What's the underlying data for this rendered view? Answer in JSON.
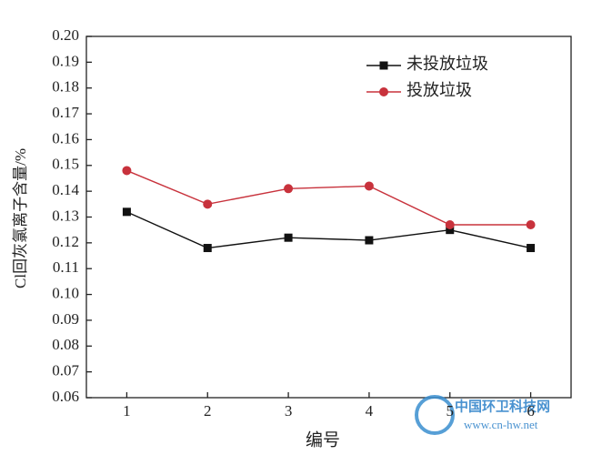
{
  "chart_data": {
    "type": "line",
    "y_label": "Cl回灰氯离子含量/%",
    "x_label": "编号",
    "categories": [
      "1",
      "2",
      "3",
      "4",
      "5",
      "6"
    ],
    "series": [
      {
        "name": "未投放垃圾",
        "color": "#111111",
        "marker": "square",
        "values": [
          0.132,
          0.118,
          0.122,
          0.121,
          0.125,
          0.118
        ]
      },
      {
        "name": "投放垃圾",
        "color": "#c8323c",
        "marker": "circle",
        "values": [
          0.148,
          0.135,
          0.141,
          0.142,
          0.127,
          0.127
        ]
      }
    ],
    "ylim": [
      0.06,
      0.2
    ],
    "yticks": [
      0.06,
      0.07,
      0.08,
      0.09,
      {
        "value": 0.1,
        "label": "0.10"
      },
      0.11,
      0.12,
      0.13,
      0.14,
      0.15,
      0.16,
      0.17,
      0.18,
      0.19,
      {
        "value": 0.2,
        "label": "0.20"
      }
    ],
    "legend": "upper right",
    "grid": false
  },
  "watermark": {
    "site": "中国环卫科技网",
    "url": "www.cn-hw.net"
  }
}
